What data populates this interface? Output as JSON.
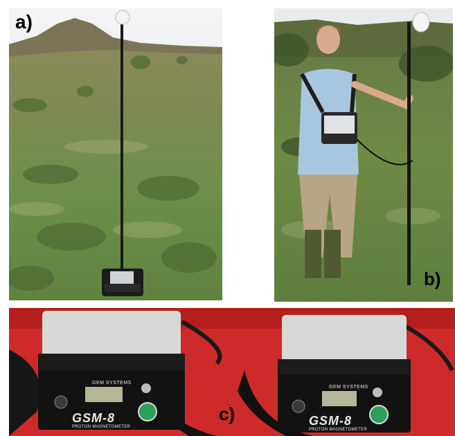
{
  "panels": [
    {
      "label": "a)"
    },
    {
      "label": "b)"
    },
    {
      "label": "c)"
    }
  ],
  "devices": [
    {
      "brand": "GEM SYSTEMS",
      "model": "GSM-8",
      "subtitle": "PROTON MAGNETOMETER"
    },
    {
      "brand": "GEM SYSTEMS",
      "model": "GSM-8",
      "subtitle": "PROTON MAGNETOMETER"
    }
  ]
}
